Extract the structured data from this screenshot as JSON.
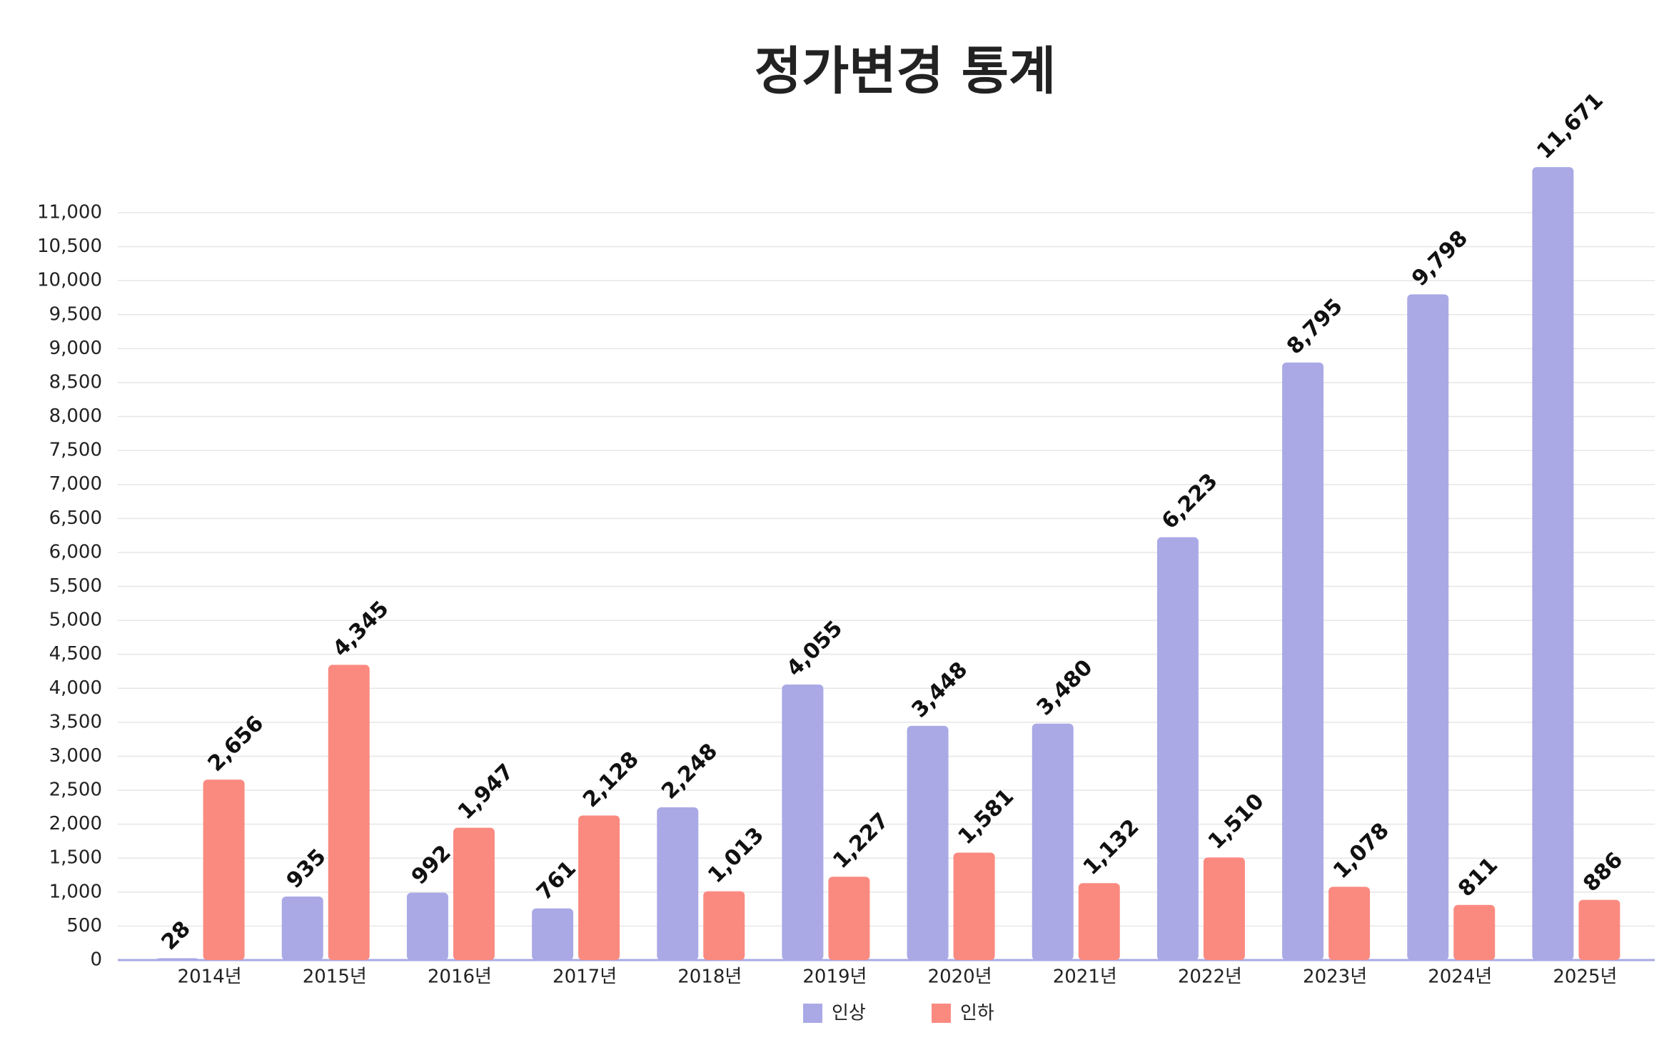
{
  "chart_data": {
    "type": "bar",
    "title": "정가변경 통계",
    "categories": [
      "2014년",
      "2015년",
      "2016년",
      "2017년",
      "2018년",
      "2019년",
      "2020년",
      "2021년",
      "2022년",
      "2023년",
      "2024년",
      "2025년"
    ],
    "series": [
      {
        "name": "인상",
        "color": "#aaa9e6",
        "values": [
          28,
          935,
          992,
          761,
          2248,
          4055,
          3448,
          3480,
          6223,
          8795,
          9798,
          11671
        ],
        "value_labels": [
          "28",
          "935",
          "992",
          "761",
          "2,248",
          "4,055",
          "3,448",
          "3,480",
          "6,223",
          "8,795",
          "9,798",
          "11,671"
        ]
      },
      {
        "name": "인하",
        "color": "#fa8a80",
        "values": [
          2656,
          4345,
          1947,
          2128,
          1013,
          1227,
          1581,
          1132,
          1510,
          1078,
          811,
          886
        ],
        "value_labels": [
          "2,656",
          "4,345",
          "1,947",
          "2,128",
          "1,013",
          "1,227",
          "1,581",
          "1,132",
          "1,510",
          "1,078",
          "811",
          "886"
        ]
      }
    ],
    "ylim": [
      0,
      11000
    ],
    "yticks": [
      0,
      500,
      {
        "value": 1000,
        "label": "1,000"
      },
      {
        "value": 1500,
        "label": "1,500"
      },
      {
        "value": 2000,
        "label": "2,000"
      },
      {
        "value": 2500,
        "label": "2,500"
      },
      {
        "value": 3000,
        "label": "3,000"
      },
      {
        "value": 3500,
        "label": "3,500"
      },
      {
        "value": 4000,
        "label": "4,000"
      },
      {
        "value": 4500,
        "label": "4,500"
      },
      {
        "value": 5000,
        "label": "5,000"
      },
      {
        "value": 5500,
        "label": "5,500"
      },
      {
        "value": 6000,
        "label": "6,000"
      },
      {
        "value": 6500,
        "label": "6,500"
      },
      {
        "value": 7000,
        "label": "7,000"
      },
      {
        "value": 7500,
        "label": "7,500"
      },
      {
        "value": 8000,
        "label": "8,000"
      },
      {
        "value": 8500,
        "label": "8,500"
      },
      {
        "value": 9000,
        "label": "9,000"
      },
      {
        "value": 9500,
        "label": "9,500"
      },
      {
        "value": 10000,
        "label": "10,000"
      },
      {
        "value": 10500,
        "label": "10,500"
      },
      {
        "value": 11000,
        "label": "11,000"
      }
    ],
    "grid": true,
    "legend": "bottom"
  }
}
